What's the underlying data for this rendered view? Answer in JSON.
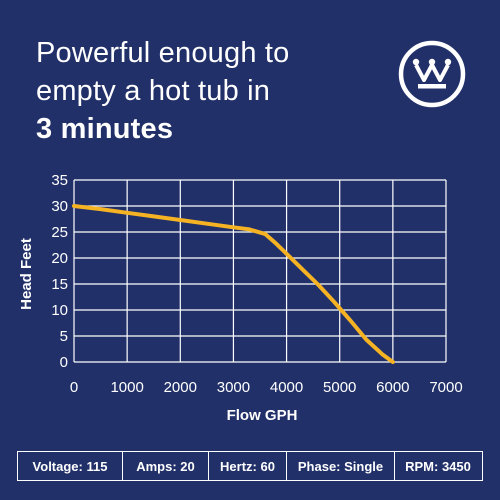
{
  "headline": {
    "line1": "Powerful enough to",
    "line2": "empty a hot tub in",
    "line3": "3 minutes"
  },
  "logo": {
    "icon": "westinghouse-w-logo-icon"
  },
  "colors": {
    "background": "#223069",
    "curve": "#f5b324",
    "text": "#ffffff"
  },
  "chart_data": {
    "type": "line",
    "title": "",
    "xlabel": "Flow GPH",
    "ylabel": "Head Feet",
    "xlim": [
      0,
      7000
    ],
    "ylim": [
      0,
      35
    ],
    "xticks": [
      0,
      1000,
      2000,
      3000,
      4000,
      5000,
      6000,
      7000
    ],
    "yticks": [
      0,
      5,
      10,
      15,
      20,
      25,
      30,
      35
    ],
    "grid": true,
    "series": [
      {
        "x": [
          0,
          500,
          1000,
          1500,
          2000,
          2500,
          3000,
          3300,
          3600,
          3800,
          4000,
          4300,
          4600,
          4900,
          5200,
          5500,
          5800,
          6000
        ],
        "y": [
          30,
          29.4,
          28.7,
          28,
          27.3,
          26.6,
          25.9,
          25.5,
          24.6,
          22.8,
          20.8,
          17.8,
          14.8,
          11.5,
          8.0,
          4.3,
          1.5,
          0
        ]
      }
    ]
  },
  "specs": [
    {
      "label": "Voltage: 115"
    },
    {
      "label": "Amps: 20"
    },
    {
      "label": "Hertz: 60"
    },
    {
      "label": "Phase: Single"
    },
    {
      "label": "RPM: 3450"
    }
  ]
}
